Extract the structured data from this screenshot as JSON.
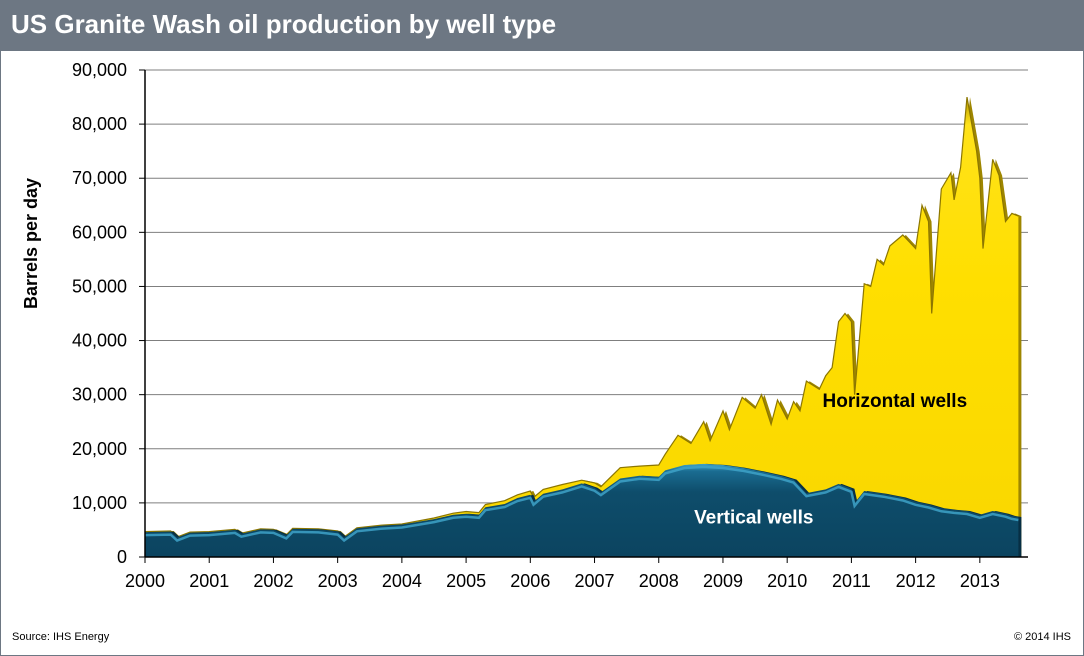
{
  "header": {
    "title": "US Granite Wash oil production by well type"
  },
  "footer": {
    "source": "Source: IHS Energy",
    "copyright": "© 2014 IHS"
  },
  "colors": {
    "title_bar": "#6d7783",
    "vertical": "#0e4d6b",
    "vertical_highlight": "#3ea2c8",
    "horizontal": "#ffdf00",
    "horizontal_shadow": "#9e8600",
    "gridline": "#7f7f7f"
  },
  "chart_data": {
    "type": "area",
    "stacked": true,
    "title": "US Granite Wash oil production by well type",
    "ylabel": "Barrels per day",
    "xlabel": "",
    "xlim": [
      2000,
      2013.75
    ],
    "ylim": [
      0,
      90000
    ],
    "y_ticks": [
      0,
      10000,
      20000,
      30000,
      40000,
      50000,
      60000,
      70000,
      80000,
      90000
    ],
    "y_tick_labels": [
      "0",
      "10,000",
      "20,000",
      "30,000",
      "40,000",
      "50,000",
      "60,000",
      "70,000",
      "80,000",
      "90,000"
    ],
    "x_ticks": [
      2000,
      2001,
      2002,
      2003,
      2004,
      2005,
      2006,
      2007,
      2008,
      2009,
      2010,
      2011,
      2012,
      2013
    ],
    "x_tick_labels": [
      "2000",
      "2001",
      "2002",
      "2003",
      "2004",
      "2005",
      "2006",
      "2007",
      "2008",
      "2009",
      "2010",
      "2011",
      "2012",
      "2013"
    ],
    "grid": true,
    "legend": "none",
    "series": [
      {
        "name": "Vertical wells",
        "label_at": [
          2008.55,
          7500
        ],
        "points": [
          [
            2000.0,
            4600
          ],
          [
            2000.4,
            4700
          ],
          [
            2000.5,
            3600
          ],
          [
            2000.7,
            4500
          ],
          [
            2001.0,
            4600
          ],
          [
            2001.4,
            5000
          ],
          [
            2001.5,
            4300
          ],
          [
            2001.8,
            5100
          ],
          [
            2002.0,
            5000
          ],
          [
            2002.2,
            4000
          ],
          [
            2002.3,
            5200
          ],
          [
            2002.7,
            5100
          ],
          [
            2003.0,
            4700
          ],
          [
            2003.1,
            3600
          ],
          [
            2003.3,
            5300
          ],
          [
            2003.7,
            5800
          ],
          [
            2004.0,
            6000
          ],
          [
            2004.5,
            7000
          ],
          [
            2004.8,
            7800
          ],
          [
            2005.0,
            8000
          ],
          [
            2005.2,
            7800
          ],
          [
            2005.3,
            9200
          ],
          [
            2005.6,
            9800
          ],
          [
            2005.8,
            10900
          ],
          [
            2006.0,
            11500
          ],
          [
            2006.05,
            10200
          ],
          [
            2006.2,
            11700
          ],
          [
            2006.5,
            12500
          ],
          [
            2006.8,
            13600
          ],
          [
            2007.0,
            12800
          ],
          [
            2007.1,
            12000
          ],
          [
            2007.4,
            14500
          ],
          [
            2007.7,
            15000
          ],
          [
            2008.0,
            14800
          ],
          [
            2008.1,
            16000
          ],
          [
            2008.4,
            17000
          ],
          [
            2008.7,
            17200
          ],
          [
            2009.0,
            17000
          ],
          [
            2009.3,
            16500
          ],
          [
            2009.6,
            15800
          ],
          [
            2009.9,
            15000
          ],
          [
            2010.1,
            14300
          ],
          [
            2010.3,
            11800
          ],
          [
            2010.6,
            12500
          ],
          [
            2010.8,
            13500
          ],
          [
            2011.0,
            12600
          ],
          [
            2011.05,
            10000
          ],
          [
            2011.2,
            12200
          ],
          [
            2011.5,
            11700
          ],
          [
            2011.8,
            11000
          ],
          [
            2012.0,
            10200
          ],
          [
            2012.2,
            9700
          ],
          [
            2012.4,
            9000
          ],
          [
            2012.6,
            8700
          ],
          [
            2012.8,
            8500
          ],
          [
            2013.0,
            7800
          ],
          [
            2013.2,
            8500
          ],
          [
            2013.4,
            8000
          ],
          [
            2013.5,
            7600
          ],
          [
            2013.6,
            7400
          ]
        ]
      },
      {
        "name": "Horizontal wells",
        "label_at": [
          2010.55,
          29000
        ],
        "points": [
          [
            2000.0,
            4700
          ],
          [
            2000.4,
            4800
          ],
          [
            2000.5,
            3700
          ],
          [
            2000.7,
            4600
          ],
          [
            2001.0,
            4700
          ],
          [
            2001.4,
            5100
          ],
          [
            2001.5,
            4400
          ],
          [
            2001.8,
            5200
          ],
          [
            2002.0,
            5100
          ],
          [
            2002.2,
            4100
          ],
          [
            2002.3,
            5300
          ],
          [
            2002.7,
            5200
          ],
          [
            2003.0,
            4800
          ],
          [
            2003.1,
            3700
          ],
          [
            2003.3,
            5400
          ],
          [
            2003.7,
            5900
          ],
          [
            2004.0,
            6100
          ],
          [
            2004.5,
            7200
          ],
          [
            2004.8,
            8100
          ],
          [
            2005.0,
            8400
          ],
          [
            2005.2,
            8200
          ],
          [
            2005.3,
            9700
          ],
          [
            2005.6,
            10400
          ],
          [
            2005.8,
            11500
          ],
          [
            2006.0,
            12200
          ],
          [
            2006.05,
            11000
          ],
          [
            2006.2,
            12500
          ],
          [
            2006.5,
            13400
          ],
          [
            2006.8,
            14200
          ],
          [
            2007.0,
            13700
          ],
          [
            2007.1,
            13000
          ],
          [
            2007.4,
            16500
          ],
          [
            2007.7,
            16800
          ],
          [
            2008.0,
            17000
          ],
          [
            2008.1,
            19000
          ],
          [
            2008.3,
            22500
          ],
          [
            2008.5,
            21000
          ],
          [
            2008.7,
            25000
          ],
          [
            2008.8,
            21500
          ],
          [
            2009.0,
            27000
          ],
          [
            2009.1,
            23500
          ],
          [
            2009.3,
            29500
          ],
          [
            2009.5,
            27500
          ],
          [
            2009.6,
            30000
          ],
          [
            2009.75,
            24500
          ],
          [
            2009.85,
            29000
          ],
          [
            2010.0,
            25500
          ],
          [
            2010.1,
            28700
          ],
          [
            2010.2,
            27000
          ],
          [
            2010.3,
            32500
          ],
          [
            2010.5,
            31000
          ],
          [
            2010.6,
            33500
          ],
          [
            2010.7,
            35000
          ],
          [
            2010.8,
            43500
          ],
          [
            2010.9,
            45000
          ],
          [
            2011.0,
            43500
          ],
          [
            2011.05,
            30000
          ],
          [
            2011.2,
            50500
          ],
          [
            2011.3,
            50000
          ],
          [
            2011.4,
            55000
          ],
          [
            2011.5,
            54000
          ],
          [
            2011.6,
            57500
          ],
          [
            2011.8,
            59500
          ],
          [
            2012.0,
            57000
          ],
          [
            2012.1,
            65000
          ],
          [
            2012.2,
            62000
          ],
          [
            2012.25,
            45000
          ],
          [
            2012.4,
            68000
          ],
          [
            2012.55,
            71000
          ],
          [
            2012.6,
            66000
          ],
          [
            2012.7,
            72000
          ],
          [
            2012.8,
            85000
          ],
          [
            2012.95,
            75000
          ],
          [
            2013.0,
            70000
          ],
          [
            2013.05,
            57000
          ],
          [
            2013.2,
            73500
          ],
          [
            2013.3,
            70500
          ],
          [
            2013.4,
            62000
          ],
          [
            2013.5,
            63500
          ],
          [
            2013.6,
            63000
          ]
        ]
      }
    ]
  }
}
